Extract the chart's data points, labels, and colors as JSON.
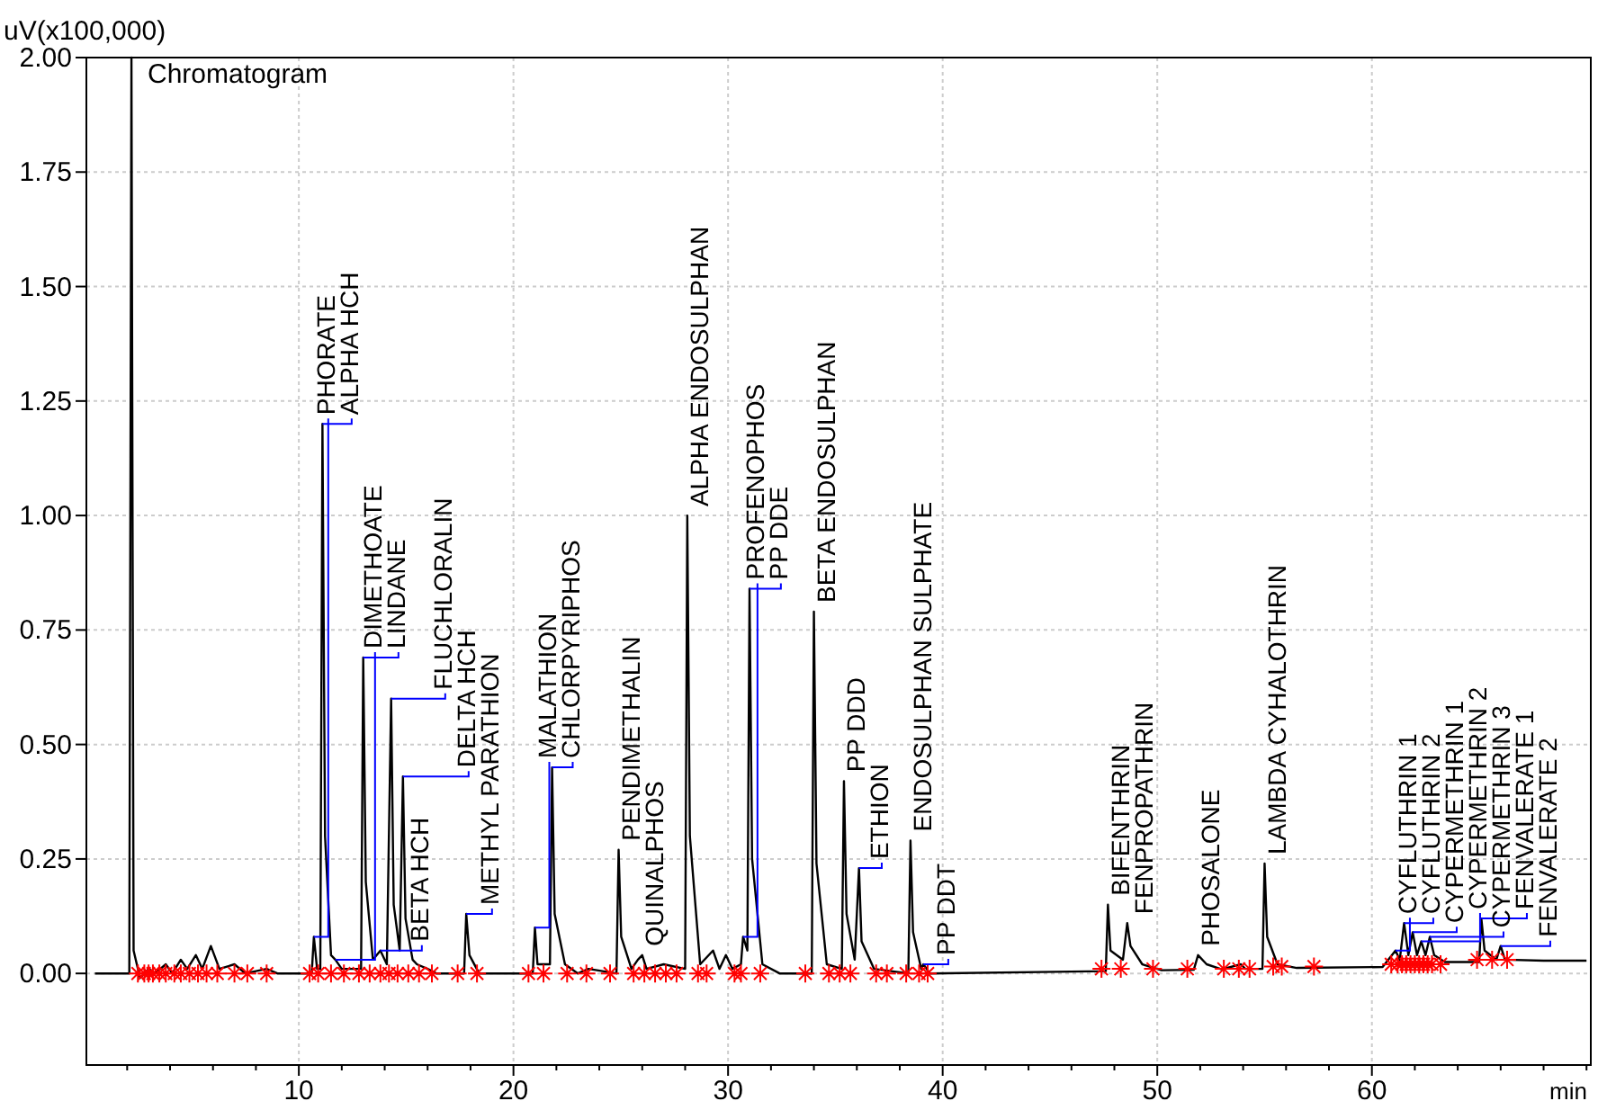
{
  "chart_data": {
    "type": "line",
    "title": "Chromatogram",
    "xlabel": "min",
    "ylabel": "uV(x100,000)",
    "xlim": [
      0.1,
      70.2
    ],
    "ylim": [
      -0.2,
      2.0
    ],
    "xticks": [
      {
        "value": 2,
        "label": null
      },
      {
        "value": 4,
        "label": null
      },
      {
        "value": 6,
        "label": null
      },
      {
        "value": 8,
        "label": null
      },
      10,
      {
        "value": 12,
        "label": null
      },
      {
        "value": 14,
        "label": null
      },
      {
        "value": 16,
        "label": null
      },
      {
        "value": 18,
        "label": null
      },
      20,
      {
        "value": 22,
        "label": null
      },
      {
        "value": 24,
        "label": null
      },
      {
        "value": 26,
        "label": null
      },
      {
        "value": 28,
        "label": null
      },
      30,
      {
        "value": 32,
        "label": null
      },
      {
        "value": 34,
        "label": null
      },
      {
        "value": 36,
        "label": null
      },
      {
        "value": 38,
        "label": null
      },
      40,
      {
        "value": 42,
        "label": null
      },
      {
        "value": 44,
        "label": null
      },
      {
        "value": 46,
        "label": null
      },
      {
        "value": 48,
        "label": null
      },
      50,
      {
        "value": 52,
        "label": null
      },
      {
        "value": 54,
        "label": null
      },
      {
        "value": 56,
        "label": null
      },
      {
        "value": 58,
        "label": null
      },
      60,
      {
        "value": 62,
        "label": null
      },
      {
        "value": 64,
        "label": null
      },
      {
        "value": 66,
        "label": null
      },
      {
        "value": 68,
        "label": null
      },
      {
        "value": 70,
        "label": null
      }
    ],
    "yticks": [
      {
        "value": 0,
        "label": "0.00"
      },
      {
        "value": 0.25,
        "label": "0.25"
      },
      {
        "value": 0.5,
        "label": "0.50"
      },
      {
        "value": 0.75,
        "label": "0.75"
      },
      {
        "value": 1,
        "label": "1.00"
      },
      {
        "value": 1.25,
        "label": "1.25"
      },
      {
        "value": 1.5,
        "label": "1.50"
      },
      {
        "value": 1.75,
        "label": "1.75"
      },
      {
        "value": 2,
        "label": "2.00"
      }
    ],
    "grid": true,
    "series": [
      {
        "color": "#000000",
        "x": [
          0.5,
          2.1,
          2.2,
          2.3,
          2.6,
          3.0,
          3.3,
          3.8,
          4.1,
          4.5,
          4.8,
          5.2,
          5.5,
          5.9,
          6.3,
          7.0,
          7.5,
          8.5,
          9.0,
          10.6,
          10.7,
          10.85,
          11.0,
          11.1,
          11.22,
          11.5,
          11.7,
          12.0,
          12.9,
          13.0,
          13.12,
          13.45,
          13.8,
          14.1,
          14.3,
          14.42,
          14.7,
          14.85,
          14.97,
          15.3,
          15.5,
          16.0,
          16.4,
          17.7,
          17.8,
          17.95,
          18.4,
          20.9,
          21.0,
          21.12,
          21.7,
          21.8,
          21.92,
          22.4,
          23.0,
          23.5,
          24.8,
          24.9,
          25.02,
          25.5,
          25.8,
          26.0,
          26.2,
          27.0,
          28.0,
          28.1,
          28.22,
          28.7,
          29.3,
          29.6,
          29.9,
          30.2,
          30.6,
          30.7,
          30.9,
          31.0,
          31.12,
          31.6,
          32.4,
          33.9,
          34.0,
          34.12,
          34.6,
          35.3,
          35.4,
          35.52,
          35.9,
          36.1,
          36.22,
          36.8,
          38.4,
          38.5,
          38.62,
          39.0,
          39.1,
          39.4,
          47.6,
          47.7,
          47.82,
          48.4,
          48.6,
          48.75,
          49.3,
          50.2,
          51.7,
          51.9,
          52.3,
          53.0,
          53.9,
          54.1,
          54.9,
          55.0,
          55.12,
          55.6,
          56.5,
          60.5,
          61.1,
          61.3,
          61.5,
          61.7,
          61.9,
          62.1,
          62.3,
          62.5,
          62.7,
          62.9,
          63.4,
          65.0,
          65.1,
          65.25,
          65.8,
          66.0,
          66.2,
          68.0,
          70.0
        ],
        "values": [
          0,
          0,
          2.0,
          0.05,
          -0.01,
          0.01,
          0,
          0.02,
          0,
          0.03,
          0.01,
          0.04,
          0.01,
          0.06,
          0.01,
          0.02,
          0,
          0.01,
          0,
          0,
          0.08,
          0.01,
          0.01,
          1.2,
          0.3,
          0.04,
          0.03,
          0.01,
          0.01,
          0.69,
          0.2,
          0.03,
          0.05,
          0.02,
          0.6,
          0.15,
          0.05,
          0.43,
          0.12,
          0.03,
          0.02,
          0.01,
          0,
          0,
          0.13,
          0.04,
          0,
          0,
          0.1,
          0.02,
          0.02,
          0.45,
          0.13,
          0.02,
          0,
          0.01,
          0,
          0.27,
          0.08,
          0.01,
          0.03,
          0.04,
          0.01,
          0.02,
          0.01,
          1.0,
          0.3,
          0.02,
          0.05,
          0.01,
          0.04,
          0.01,
          0.02,
          0.08,
          0.05,
          0.84,
          0.25,
          0.02,
          0,
          0,
          0.79,
          0.24,
          0.02,
          0.01,
          0.42,
          0.13,
          0.03,
          0.23,
          0.07,
          0.01,
          0,
          0.29,
          0.09,
          0.01,
          0.02,
          0,
          0.005,
          0.15,
          0.05,
          0.03,
          0.11,
          0.06,
          0.02,
          0.007,
          0.008,
          0.04,
          0.02,
          0.009,
          0.02,
          0.01,
          0.01,
          0.24,
          0.08,
          0.02,
          0.012,
          0.014,
          0.05,
          0.03,
          0.11,
          0.04,
          0.09,
          0.04,
          0.07,
          0.04,
          0.08,
          0.04,
          0.025,
          0.025,
          0.12,
          0.05,
          0.03,
          0.06,
          0.03,
          0.028,
          0.028
        ]
      },
      {
        "type": "scatter",
        "color": "#ff0000",
        "marker": "cross",
        "x": [
          2.5,
          2.8,
          3.0,
          3.2,
          3.5,
          3.8,
          4.2,
          4.5,
          4.9,
          5.3,
          5.7,
          6.2,
          7.0,
          7.6,
          8.5,
          10.5,
          10.9,
          11.5,
          12.1,
          12.8,
          13.3,
          13.8,
          14.2,
          14.6,
          15.1,
          15.6,
          16.2,
          17.4,
          18.3,
          20.7,
          21.4,
          22.5,
          23.4,
          24.5,
          25.6,
          26.1,
          26.6,
          27.1,
          27.6,
          28.6,
          29.0,
          30.3,
          30.6,
          31.5,
          33.6,
          34.7,
          35.2,
          35.7,
          36.9,
          37.4,
          38.3,
          38.9,
          39.3,
          47.4,
          48.3,
          49.8,
          51.4,
          53.1,
          53.8,
          54.3,
          55.4,
          55.8,
          57.3,
          60.9,
          61.2,
          61.4,
          61.6,
          61.8,
          62.0,
          62.2,
          62.4,
          62.6,
          62.8,
          63.2,
          64.9,
          65.6,
          66.3
        ],
        "values": [
          0,
          0,
          0,
          0,
          0,
          0,
          0,
          0,
          0,
          0,
          0,
          0,
          0,
          0,
          0,
          0,
          0,
          0,
          0,
          0,
          0,
          0,
          0,
          0,
          0,
          0,
          0,
          0,
          0,
          0,
          0,
          0,
          0,
          0,
          0,
          0,
          0,
          0,
          0,
          0,
          0,
          0,
          0,
          0,
          0,
          0,
          0,
          0,
          0,
          0,
          0,
          0,
          0,
          0.01,
          0.01,
          0.01,
          0.01,
          0.01,
          0.01,
          0.01,
          0.015,
          0.015,
          0.015,
          0.02,
          0.02,
          0.02,
          0.02,
          0.02,
          0.02,
          0.02,
          0.02,
          0.02,
          0.02,
          0.02,
          0.03,
          0.03,
          0.03
        ]
      }
    ],
    "annotations": [
      {
        "text": "PHORATE",
        "x": 10.7,
        "y": 0.08
      },
      {
        "text": "ALPHA HCH",
        "x": 11.1,
        "y": 1.2
      },
      {
        "text": "DIMETHOATE",
        "x": 11.7,
        "y": 0.03
      },
      {
        "text": "LINDANE",
        "x": 13.0,
        "y": 0.69
      },
      {
        "text": "BETA HCH",
        "x": 13.8,
        "y": 0.05
      },
      {
        "text": "FLUCHLORALIN",
        "x": 14.3,
        "y": 0.6
      },
      {
        "text": "DELTA HCH",
        "x": 14.85,
        "y": 0.43
      },
      {
        "text": "METHYL PARATHION",
        "x": 17.8,
        "y": 0.13
      },
      {
        "text": "MALATHION",
        "x": 21.0,
        "y": 0.1
      },
      {
        "text": "CHLORPYRIPHOS",
        "x": 21.8,
        "y": 0.45
      },
      {
        "text": "PENDIMETHALIN",
        "x": 24.9,
        "y": 0.27
      },
      {
        "text": "QUINALPHOS",
        "x": 26.0,
        "y": 0.04
      },
      {
        "text": "ALPHA ENDOSULPHAN",
        "x": 28.1,
        "y": 1.0
      },
      {
        "text": "PROFENOPHOS",
        "x": 30.7,
        "y": 0.08
      },
      {
        "text": "PP DDE",
        "x": 31.0,
        "y": 0.84
      },
      {
        "text": "BETA ENDOSULPHAN",
        "x": 34.0,
        "y": 0.79
      },
      {
        "text": "PP DDD",
        "x": 35.4,
        "y": 0.42
      },
      {
        "text": "ETHION",
        "x": 36.1,
        "y": 0.23
      },
      {
        "text": "ENDOSULPHAN SULPHATE",
        "x": 38.5,
        "y": 0.29
      },
      {
        "text": "PP DDT",
        "x": 39.1,
        "y": 0.02
      },
      {
        "text": "BIFENTHRIN",
        "x": 47.7,
        "y": 0.15
      },
      {
        "text": "FENPROPATHRIN",
        "x": 48.6,
        "y": 0.11
      },
      {
        "text": "PHOSALONE",
        "x": 51.9,
        "y": 0.04
      },
      {
        "text": "LAMBDA CYHALOTHRIN",
        "x": 55.0,
        "y": 0.24
      },
      {
        "text": "CYFLUTHRIN 1",
        "x": 61.1,
        "y": 0.05
      },
      {
        "text": "CYFLUTHRIN 2",
        "x": 61.5,
        "y": 0.11
      },
      {
        "text": "CYPERMETHRIN 1",
        "x": 61.9,
        "y": 0.09
      },
      {
        "text": "CYPERMETHRIN 2",
        "x": 62.3,
        "y": 0.07
      },
      {
        "text": "CYPERMETHRIN 3",
        "x": 62.7,
        "y": 0.08
      },
      {
        "text": "FENVALERATE 1",
        "x": 65.1,
        "y": 0.12
      },
      {
        "text": "FENVALERATE 2",
        "x": 66.0,
        "y": 0.06
      }
    ]
  }
}
